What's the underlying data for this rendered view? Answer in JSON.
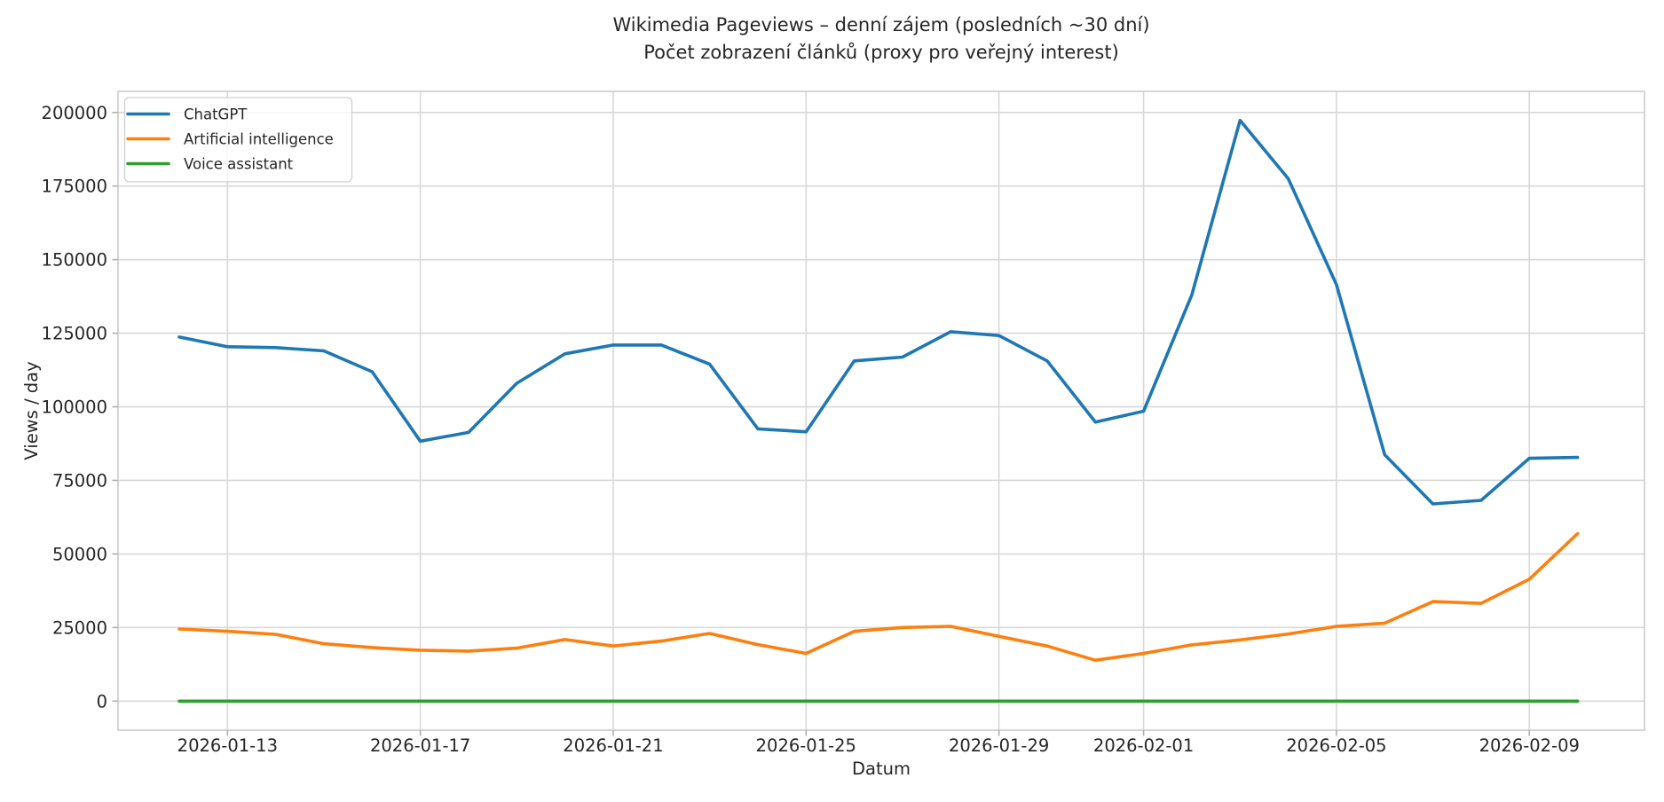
{
  "figure": {
    "background": "#ffffff"
  },
  "chart_data": {
    "type": "line",
    "title": "Wikimedia Pageviews – denní zájem (posledních ~30 dní)",
    "subtitle": "Počet zobrazení článků (proxy pro veřejný interest)",
    "xlabel": "Datum",
    "ylabel": "Views / day",
    "x": [
      "2026-01-12",
      "2026-01-13",
      "2026-01-14",
      "2026-01-15",
      "2026-01-16",
      "2026-01-17",
      "2026-01-18",
      "2026-01-19",
      "2026-01-20",
      "2026-01-21",
      "2026-01-22",
      "2026-01-23",
      "2026-01-24",
      "2026-01-25",
      "2026-01-26",
      "2026-01-27",
      "2026-01-28",
      "2026-01-29",
      "2026-01-30",
      "2026-01-31",
      "2026-02-01",
      "2026-02-02",
      "2026-02-03",
      "2026-02-04",
      "2026-02-05",
      "2026-02-06",
      "2026-02-07",
      "2026-02-08",
      "2026-02-09",
      "2026-02-10"
    ],
    "series": [
      {
        "name": "ChatGPT",
        "color": "#1f77b4",
        "values": [
          123700,
          120400,
          120100,
          119000,
          111900,
          88300,
          91300,
          108000,
          118000,
          121000,
          121000,
          114500,
          92500,
          91500,
          115600,
          116900,
          125500,
          124200,
          115600,
          94800,
          98500,
          138000,
          197300,
          177500,
          141500,
          83700,
          67000,
          68200,
          82500,
          82800
        ]
      },
      {
        "name": "Artificial intelligence",
        "color": "#ff7f0e",
        "values": [
          24500,
          23700,
          22700,
          19500,
          18200,
          17300,
          17000,
          18000,
          20900,
          18700,
          20400,
          23000,
          19200,
          16200,
          23700,
          25000,
          25400,
          22000,
          18700,
          13900,
          16200,
          19100,
          20800,
          22800,
          25400,
          26500,
          33800,
          33200,
          41400,
          56900
        ]
      },
      {
        "name": "Voice assistant",
        "color": "#2ca02c",
        "values": [
          0,
          0,
          0,
          0,
          0,
          0,
          0,
          0,
          0,
          0,
          0,
          0,
          0,
          0,
          0,
          0,
          0,
          0,
          0,
          0,
          0,
          0,
          0,
          0,
          0,
          0,
          0,
          0,
          0,
          0
        ]
      }
    ],
    "yticks": [
      0,
      25000,
      50000,
      75000,
      100000,
      125000,
      150000,
      175000,
      200000
    ],
    "xticks": [
      {
        "label": "2026-01-13",
        "index": 1
      },
      {
        "label": "2026-01-17",
        "index": 5
      },
      {
        "label": "2026-01-21",
        "index": 9
      },
      {
        "label": "2026-01-25",
        "index": 13
      },
      {
        "label": "2026-01-29",
        "index": 17
      },
      {
        "label": "2026-02-01",
        "index": 20
      },
      {
        "label": "2026-02-05",
        "index": 24
      },
      {
        "label": "2026-02-09",
        "index": 28
      }
    ],
    "ylim": [
      -9865,
      207165
    ],
    "grid": true,
    "legend_position": "upper left",
    "colors": {
      "grid": "#d8d8d8",
      "spine": "#cccccc",
      "tick_mark": "#b0b0b0",
      "text": "#262626"
    }
  }
}
